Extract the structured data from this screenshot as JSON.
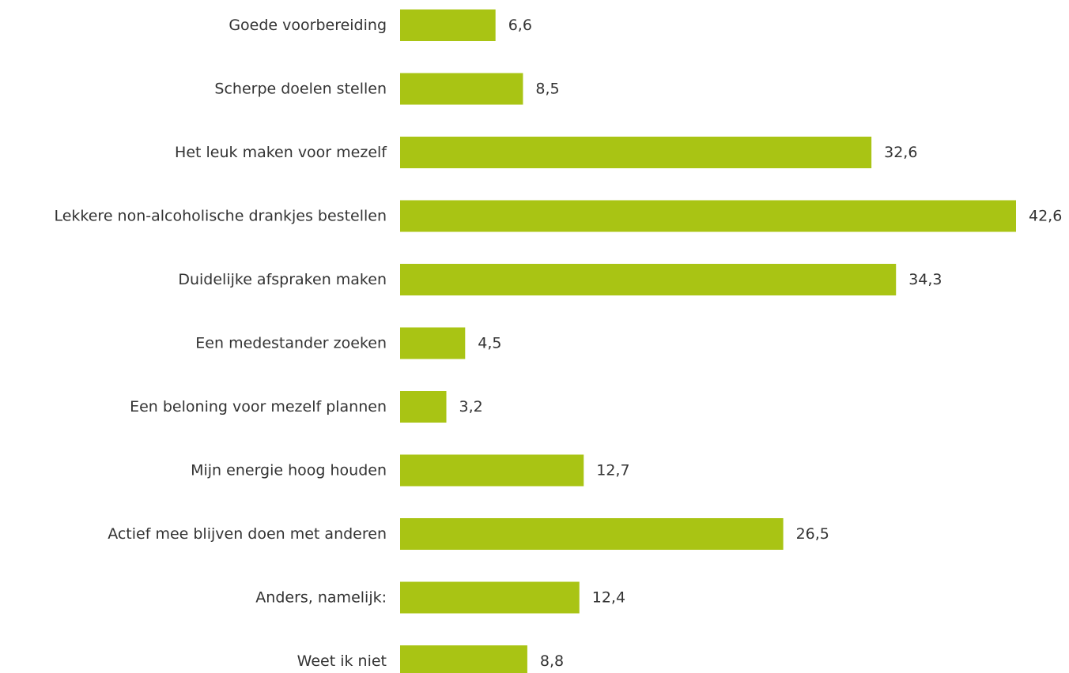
{
  "chart_data": {
    "type": "bar",
    "orientation": "horizontal",
    "categories": [
      "Goede voorbereiding",
      "Scherpe doelen stellen",
      "Het leuk maken voor mezelf",
      "Lekkere non-alcoholische drankjes bestellen",
      "Duidelijke afspraken maken",
      "Een medestander zoeken",
      "Een beloning voor mezelf plannen",
      "Mijn energie hoog houden",
      "Actief mee blijven doen met anderen",
      "Anders, namelijk:",
      "Weet ik niet"
    ],
    "values": [
      6.6,
      8.5,
      32.6,
      42.6,
      34.3,
      4.5,
      3.2,
      12.7,
      26.5,
      12.4,
      8.8
    ],
    "value_labels": [
      "6,6",
      "8,5",
      "32,6",
      "42,6",
      "34,3",
      "4,5",
      "3,2",
      "12,7",
      "26,5",
      "12,4",
      "8,8"
    ],
    "xlim": [
      0,
      42.6
    ],
    "grid": false,
    "legend": "none",
    "bar_color": "#a9c414",
    "text_color": "#333333"
  }
}
